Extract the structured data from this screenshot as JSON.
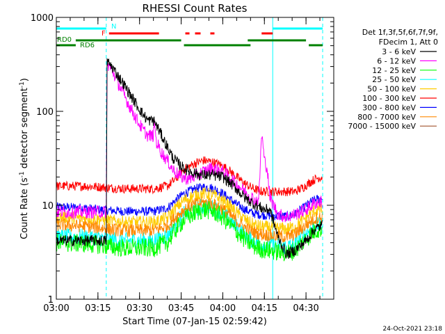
{
  "chart_data": {
    "type": "line",
    "title": "RHESSI Count Rates",
    "xlabel": "Start Time (07-Jan-15 02:59:42)",
    "ylabel_main": "Count Rate (s",
    "ylabel_sup1": "-1",
    "ylabel_mid": " detector segment",
    "ylabel_sup2": "-1",
    "ylabel_end": ")",
    "y_scale": "log",
    "ylim": [
      1,
      1000
    ],
    "xlim_minutes": [
      0,
      100
    ],
    "x_ticks": [
      {
        "label": "03:00",
        "min": 0
      },
      {
        "label": "03:15",
        "min": 15
      },
      {
        "label": "03:30",
        "min": 30
      },
      {
        "label": "03:45",
        "min": 45
      },
      {
        "label": "04:00",
        "min": 60
      },
      {
        "label": "04:15",
        "min": 75
      },
      {
        "label": "04:30",
        "min": 90
      }
    ],
    "y_ticks": [
      {
        "label": "1",
        "value": 1
      },
      {
        "label": "10",
        "value": 10
      },
      {
        "label": "100",
        "value": 100
      },
      {
        "label": "1000",
        "value": 1000
      }
    ],
    "legend_header": [
      "Det 1f,3f,5f,6f,7f,9f,",
      "FDecim 1, Att 0"
    ],
    "legend_placement": "right",
    "series": [
      {
        "name": "3 - 6 keV",
        "color": "#000000",
        "points": [
          [
            0,
            4.2
          ],
          [
            10,
            4.2
          ],
          [
            18,
            4.2
          ],
          [
            18.3,
            340
          ],
          [
            20,
            300
          ],
          [
            24,
            200
          ],
          [
            28,
            130
          ],
          [
            31,
            95
          ],
          [
            33,
            80
          ],
          [
            35,
            80
          ],
          [
            36,
            72
          ],
          [
            38,
            55
          ],
          [
            40,
            42
          ],
          [
            42,
            32
          ],
          [
            45,
            26
          ],
          [
            48,
            23
          ],
          [
            52,
            21
          ],
          [
            56,
            21
          ],
          [
            60,
            20
          ],
          [
            64,
            16
          ],
          [
            68,
            12
          ],
          [
            72,
            10
          ],
          [
            75,
            9
          ],
          [
            77,
            9
          ],
          [
            80,
            4.5
          ],
          [
            83,
            3
          ],
          [
            86,
            3.3
          ],
          [
            90,
            4.2
          ],
          [
            93,
            5.5
          ],
          [
            96,
            6.2
          ]
        ]
      },
      {
        "name": "6 - 12 keV",
        "color": "#ff00ff",
        "points": [
          [
            0,
            8.5
          ],
          [
            10,
            8.5
          ],
          [
            18,
            8.5
          ],
          [
            18.3,
            320
          ],
          [
            20,
            280
          ],
          [
            23,
            180
          ],
          [
            26,
            120
          ],
          [
            29,
            82
          ],
          [
            31,
            65
          ],
          [
            33,
            55
          ],
          [
            35,
            55
          ],
          [
            35.5,
            78
          ],
          [
            36,
            48
          ],
          [
            38,
            36
          ],
          [
            40,
            30
          ],
          [
            42,
            24
          ],
          [
            45,
            20
          ],
          [
            48,
            19
          ],
          [
            52,
            22
          ],
          [
            56,
            25
          ],
          [
            60,
            23
          ],
          [
            64,
            18
          ],
          [
            68,
            14
          ],
          [
            72,
            11
          ],
          [
            73,
            12
          ],
          [
            74,
            60
          ],
          [
            75,
            30
          ],
          [
            76,
            25
          ],
          [
            77,
            12
          ],
          [
            80,
            8
          ],
          [
            83,
            7.5
          ],
          [
            86,
            8
          ],
          [
            90,
            9
          ],
          [
            93,
            10.5
          ],
          [
            96,
            11
          ]
        ]
      },
      {
        "name": "12 - 25 keV",
        "color": "#00ff00",
        "points": [
          [
            0,
            4
          ],
          [
            10,
            3.9
          ],
          [
            15,
            3.8
          ],
          [
            20,
            3.6
          ],
          [
            25,
            3.5
          ],
          [
            30,
            3.5
          ],
          [
            35,
            3.5
          ],
          [
            40,
            4
          ],
          [
            43,
            5.5
          ],
          [
            46,
            7
          ],
          [
            50,
            8.3
          ],
          [
            53,
            9
          ],
          [
            56,
            8.7
          ],
          [
            59,
            7.8
          ],
          [
            62,
            6.5
          ],
          [
            65,
            5.2
          ],
          [
            68,
            4.3
          ],
          [
            71,
            3.7
          ],
          [
            74,
            3.4
          ],
          [
            77,
            3.3
          ],
          [
            80,
            3.2
          ],
          [
            83,
            3.1
          ],
          [
            86,
            3.3
          ],
          [
            89,
            4.1
          ],
          [
            92,
            5
          ],
          [
            94,
            5.5
          ],
          [
            96,
            5.6
          ]
        ]
      },
      {
        "name": "25 - 50 keV",
        "color": "#00ffff",
        "points": [
          [
            0,
            4.6
          ],
          [
            10,
            4.6
          ],
          [
            15,
            4.5
          ],
          [
            20,
            4.3
          ],
          [
            25,
            4.2
          ],
          [
            30,
            4.2
          ],
          [
            35,
            4.2
          ],
          [
            40,
            4.8
          ],
          [
            43,
            6.3
          ],
          [
            46,
            8
          ],
          [
            50,
            9.3
          ],
          [
            53,
            9.8
          ],
          [
            56,
            9.5
          ],
          [
            59,
            8.6
          ],
          [
            62,
            7.2
          ],
          [
            65,
            5.9
          ],
          [
            68,
            4.8
          ],
          [
            71,
            4.2
          ],
          [
            74,
            3.9
          ],
          [
            77,
            3.8
          ],
          [
            80,
            3.7
          ],
          [
            83,
            3.6
          ],
          [
            86,
            3.8
          ],
          [
            89,
            4.7
          ],
          [
            92,
            5.7
          ],
          [
            94,
            6.1
          ],
          [
            96,
            6.2
          ]
        ]
      },
      {
        "name": "50 - 100 keV",
        "color": "#ffcc00",
        "points": [
          [
            0,
            7.5
          ],
          [
            10,
            7.3
          ],
          [
            15,
            7.1
          ],
          [
            20,
            6.8
          ],
          [
            25,
            6.6
          ],
          [
            30,
            6.6
          ],
          [
            35,
            6.6
          ],
          [
            40,
            7.3
          ],
          [
            43,
            9.3
          ],
          [
            46,
            11.3
          ],
          [
            50,
            12.8
          ],
          [
            53,
            13.3
          ],
          [
            56,
            13
          ],
          [
            59,
            11.8
          ],
          [
            62,
            10
          ],
          [
            65,
            8.4
          ],
          [
            68,
            7
          ],
          [
            71,
            6.2
          ],
          [
            74,
            5.9
          ],
          [
            77,
            5.8
          ],
          [
            80,
            5.7
          ],
          [
            83,
            5.6
          ],
          [
            86,
            5.9
          ],
          [
            89,
            7
          ],
          [
            92,
            8.4
          ],
          [
            94,
            8.9
          ],
          [
            96,
            9
          ]
        ]
      },
      {
        "name": "100 - 300 keV",
        "color": "#ff0000",
        "points": [
          [
            0,
            16
          ],
          [
            10,
            16
          ],
          [
            15,
            15.7
          ],
          [
            20,
            15.3
          ],
          [
            25,
            15
          ],
          [
            30,
            15
          ],
          [
            35,
            15
          ],
          [
            40,
            16
          ],
          [
            43,
            19
          ],
          [
            46,
            24
          ],
          [
            50,
            28
          ],
          [
            53,
            30
          ],
          [
            56,
            29
          ],
          [
            59,
            27
          ],
          [
            62,
            24
          ],
          [
            65,
            20
          ],
          [
            68,
            17
          ],
          [
            71,
            15
          ],
          [
            74,
            14
          ],
          [
            77,
            14
          ],
          [
            80,
            14
          ],
          [
            83,
            14
          ],
          [
            86,
            14
          ],
          [
            89,
            15.5
          ],
          [
            92,
            18
          ],
          [
            94,
            19.5
          ],
          [
            96,
            20
          ]
        ]
      },
      {
        "name": "300 - 800 keV",
        "color": "#0000ff",
        "points": [
          [
            0,
            9.6
          ],
          [
            10,
            9.4
          ],
          [
            15,
            9
          ],
          [
            20,
            8.8
          ],
          [
            25,
            8.6
          ],
          [
            30,
            8.6
          ],
          [
            35,
            8.6
          ],
          [
            40,
            9.3
          ],
          [
            43,
            11.3
          ],
          [
            46,
            13.3
          ],
          [
            50,
            15
          ],
          [
            53,
            15.6
          ],
          [
            56,
            15.3
          ],
          [
            59,
            14
          ],
          [
            62,
            12
          ],
          [
            65,
            10.2
          ],
          [
            68,
            9
          ],
          [
            71,
            8.2
          ],
          [
            74,
            7.9
          ],
          [
            77,
            7.8
          ],
          [
            80,
            7.7
          ],
          [
            83,
            7.6
          ],
          [
            86,
            8
          ],
          [
            89,
            9.3
          ],
          [
            92,
            11
          ],
          [
            94,
            11.6
          ],
          [
            96,
            11.8
          ]
        ]
      },
      {
        "name": "800 - 7000 keV",
        "color": "#ff8800",
        "points": [
          [
            0,
            6.2
          ],
          [
            10,
            6
          ],
          [
            15,
            5.8
          ],
          [
            20,
            5.5
          ],
          [
            25,
            5.4
          ],
          [
            30,
            5.4
          ],
          [
            35,
            5.4
          ],
          [
            40,
            6
          ],
          [
            43,
            7.5
          ],
          [
            46,
            9
          ],
          [
            50,
            10.2
          ],
          [
            53,
            10.7
          ],
          [
            56,
            10.4
          ],
          [
            59,
            9.5
          ],
          [
            62,
            8.1
          ],
          [
            65,
            6.8
          ],
          [
            68,
            5.8
          ],
          [
            71,
            5.2
          ],
          [
            74,
            4.9
          ],
          [
            77,
            4.8
          ],
          [
            80,
            4.7
          ],
          [
            83,
            4.6
          ],
          [
            86,
            4.9
          ],
          [
            89,
            5.8
          ],
          [
            92,
            6.9
          ],
          [
            94,
            7.3
          ],
          [
            96,
            7.4
          ]
        ]
      },
      {
        "name": "7000 - 15000 keV",
        "color": "#a0522d",
        "points": []
      }
    ],
    "flags": [
      {
        "label": "N",
        "color": "#00ffff",
        "segments": [
          [
            0,
            18
          ],
          [
            78,
            96
          ]
        ]
      },
      {
        "label": "F",
        "color": "#ff0000",
        "segments": [
          [
            19,
            37
          ],
          [
            46.5,
            48
          ],
          [
            50,
            52
          ],
          [
            55.5,
            57
          ],
          [
            74,
            78
          ]
        ]
      },
      {
        "label": "RD0",
        "color": "#008000",
        "segments": [
          [
            7,
            45
          ],
          [
            69,
            90
          ]
        ]
      },
      {
        "label": "RD6",
        "color": "#008000",
        "segments": [
          [
            0,
            7
          ],
          [
            46,
            70
          ],
          [
            91,
            96
          ]
        ]
      }
    ],
    "vertical_markers": [
      {
        "min": 18,
        "style": "dashed",
        "color": "#00ffff"
      },
      {
        "min": 78,
        "style": "solid",
        "color": "#00ffff"
      },
      {
        "min": 96,
        "style": "dashed",
        "color": "#00ffff"
      }
    ]
  },
  "footer_date": "24-Oct-2021 23:18"
}
